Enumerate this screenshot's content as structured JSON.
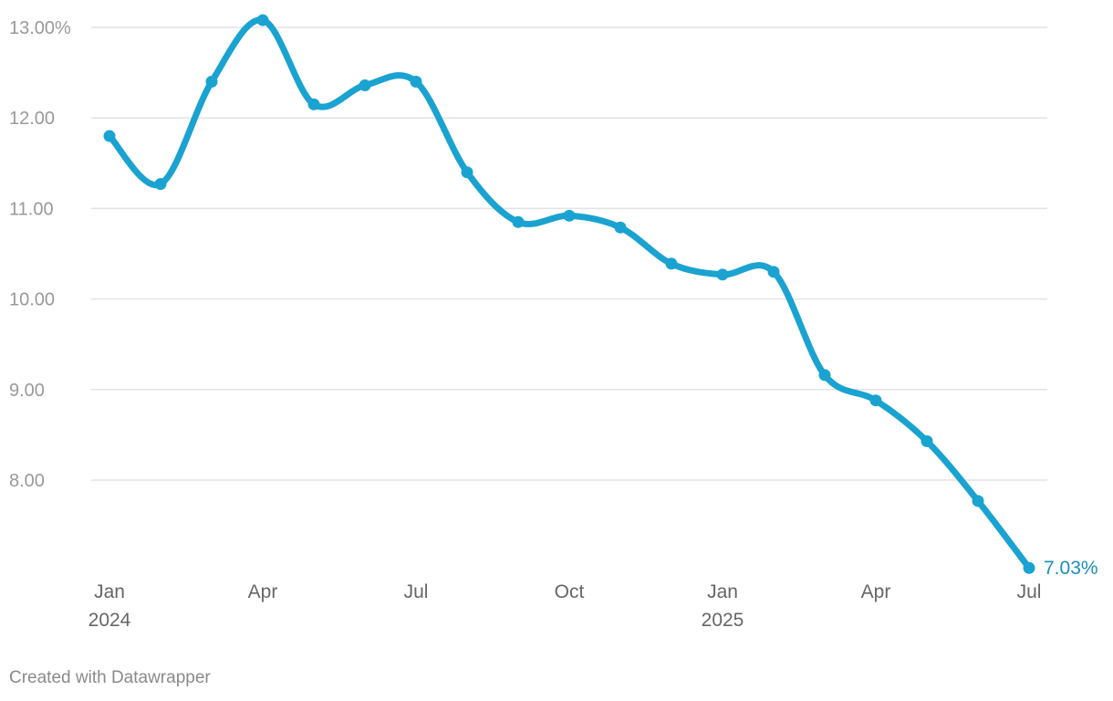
{
  "chart_data": {
    "type": "line",
    "title": "",
    "xlabel": "",
    "ylabel": "",
    "x": [
      "2024-01",
      "2024-02",
      "2024-03",
      "2024-04",
      "2024-05",
      "2024-06",
      "2024-07",
      "2024-08",
      "2024-09",
      "2024-10",
      "2024-11",
      "2024-12",
      "2025-01",
      "2025-02",
      "2025-03",
      "2025-04",
      "2025-05",
      "2025-06",
      "2025-07"
    ],
    "series": [
      {
        "values": [
          11.8,
          11.27,
          12.4,
          13.08,
          12.15,
          12.36,
          12.4,
          11.4,
          10.85,
          10.92,
          10.79,
          10.39,
          10.27,
          10.3,
          9.16,
          8.88,
          8.43,
          7.77,
          7.03
        ],
        "color": "#1aa3d1"
      }
    ],
    "ylim": [
      7.0,
      13.0
    ],
    "y_ticks": [
      {
        "value": 13,
        "label": "13.00%"
      },
      {
        "value": 12,
        "label": "12.00"
      },
      {
        "value": 11,
        "label": "11.00"
      },
      {
        "value": 10,
        "label": "10.00"
      },
      {
        "value": 9,
        "label": "9.00"
      },
      {
        "value": 8,
        "label": "8.00"
      }
    ],
    "x_ticks": [
      {
        "value": "2024-01",
        "label": "Jan",
        "sublabel": "2024"
      },
      {
        "value": "2024-04",
        "label": "Apr",
        "sublabel": ""
      },
      {
        "value": "2024-07",
        "label": "Jul",
        "sublabel": ""
      },
      {
        "value": "2024-10",
        "label": "Oct",
        "sublabel": ""
      },
      {
        "value": "2025-01",
        "label": "Jan",
        "sublabel": "2025"
      },
      {
        "value": "2025-04",
        "label": "Apr",
        "sublabel": ""
      },
      {
        "value": "2025-07",
        "label": "Jul",
        "sublabel": ""
      }
    ],
    "end_label": {
      "text": "7.03%",
      "color": "#1a8fb8"
    },
    "grid": true,
    "legend": "none"
  },
  "footer": {
    "credit": "Created with Datawrapper"
  }
}
